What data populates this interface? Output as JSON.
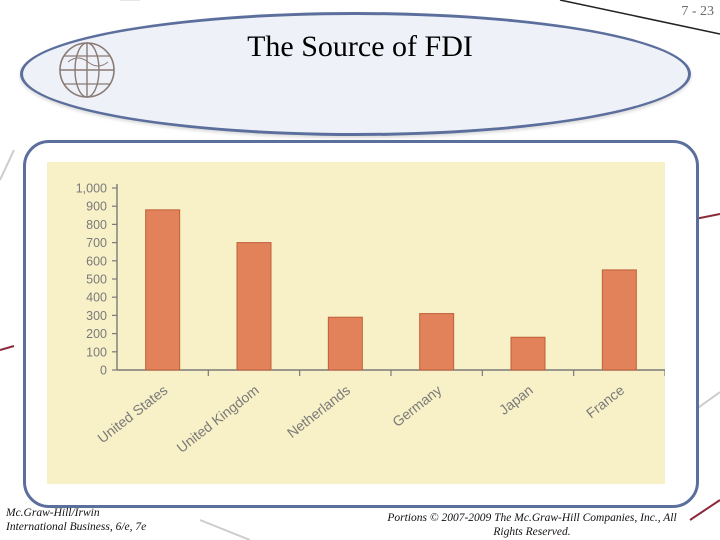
{
  "slide": {
    "page_number": "7 - 23",
    "title": "The Source of FDI",
    "footer_left_line1": "Mc.Graw-Hill/Irwin",
    "footer_left_line2": "International Business, 6/e, 7e",
    "footer_right_line1": "Portions © 2007-2009 The Mc.Graw-Hill Companies, Inc., All",
    "footer_right_line2": "Rights Reserved."
  },
  "colors": {
    "bar": "#e2825a",
    "bar_edge": "#c0603a",
    "plot_bg": "#f8f0c6",
    "frame": "#5b6e9c",
    "axis": "#7a7a7a"
  },
  "chart_data": {
    "type": "bar",
    "categories": [
      "United States",
      "United Kingdom",
      "Netherlands",
      "Germany",
      "Japan",
      "France"
    ],
    "values": [
      880,
      700,
      290,
      310,
      180,
      550
    ],
    "ylim": [
      0,
      1000
    ],
    "yticks": [
      "0",
      "100",
      "200",
      "300",
      "400",
      "500",
      "600",
      "700",
      "800",
      "900",
      "1,000"
    ],
    "title": "",
    "xlabel": "",
    "ylabel": "",
    "grid": false
  }
}
